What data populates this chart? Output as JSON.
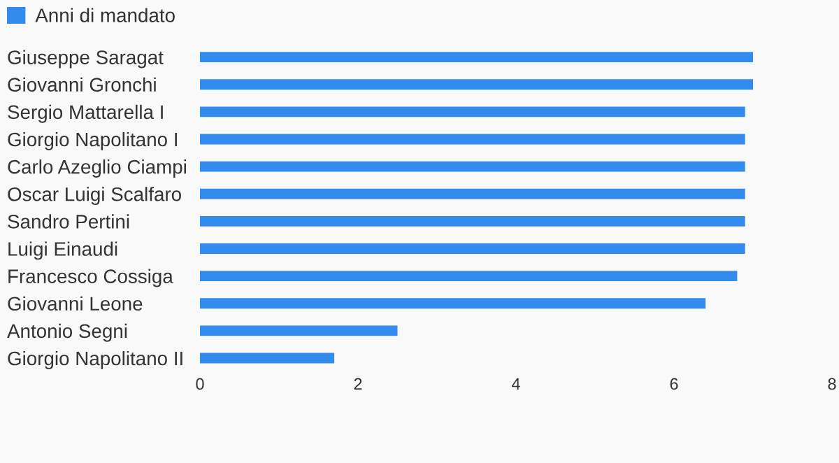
{
  "chart_data": {
    "type": "bar",
    "orientation": "horizontal",
    "categories": [
      "Giuseppe Saragat",
      "Giovanni Gronchi",
      "Sergio Mattarella I",
      "Giorgio Napolitano I",
      "Carlo Azeglio Ciampi",
      "Oscar Luigi Scalfaro",
      "Sandro Pertini",
      "Luigi Einaudi",
      "Francesco Cossiga",
      "Giovanni Leone",
      "Antonio Segni",
      "Giorgio Napolitano II"
    ],
    "series": [
      {
        "name": "Anni di mandato",
        "color": "#338bed",
        "values": [
          7.0,
          7.0,
          6.9,
          6.9,
          6.9,
          6.9,
          6.9,
          6.9,
          6.8,
          6.4,
          2.5,
          1.7
        ]
      }
    ],
    "xlim": [
      0,
      8
    ],
    "xticks": [
      0,
      2,
      4,
      6,
      8
    ],
    "legend": "top left"
  }
}
